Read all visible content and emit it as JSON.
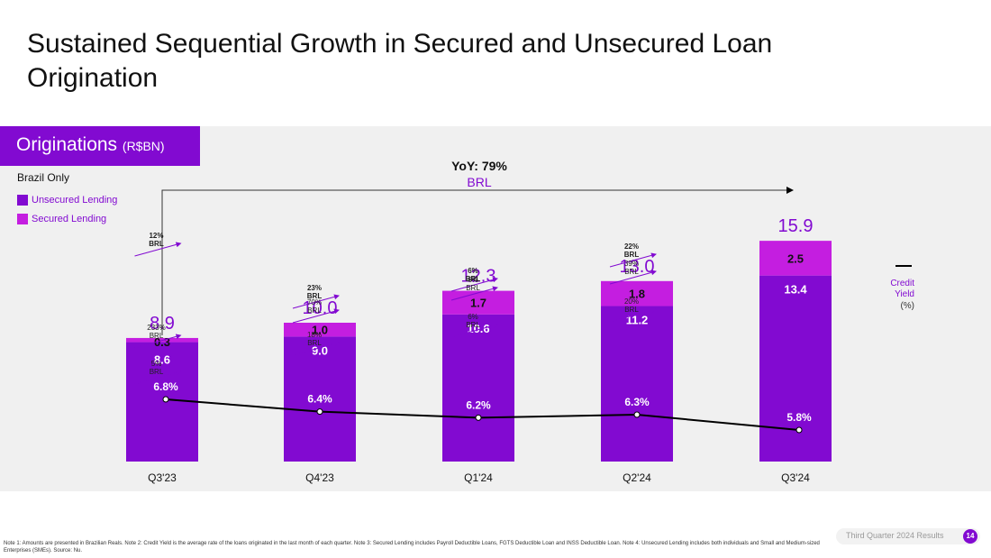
{
  "page": {
    "title": "Sustained Sequential Growth in Secured and Unsecured Loan Origination",
    "tag": {
      "label": "Originations",
      "unit": "(R$BN)"
    },
    "subtitle": "Brazil Only",
    "legend": [
      {
        "label": "Unsecured Lending",
        "color": "#820ad1"
      },
      {
        "label": "Secured Lending",
        "color": "#c41ee0"
      }
    ],
    "yoy": {
      "label": "YoY: 79%",
      "sub": "BRL"
    },
    "credit_yield_label": [
      "Credit",
      "Yield",
      "(%)"
    ],
    "footer": {
      "note": "Note 1: Amounts are presented in Brazilian Reals. Note 2: Credit Yield is the average rate of the loans originated in the last month of each quarter. Note 3: Secured Lending includes Payroll Deductible Loans, FGTS Deductible Loan and INSS Deductible Loan. Note 4: Unsecured Lending includes both individuals and Small and Medium-sized Enterprises (SMEs). Source: Nu.",
      "report": "Third Quarter 2024 Results",
      "page_number": "14"
    }
  },
  "chart_data": {
    "type": "bar",
    "title": "Originations (R$BN)",
    "categories": [
      "Q3'23",
      "Q4'23",
      "Q1'24",
      "Q2'24",
      "Q3'24"
    ],
    "series": [
      {
        "name": "Unsecured Lending",
        "values": [
          8.6,
          9.0,
          10.6,
          11.2,
          13.4
        ],
        "labels": [
          "8.6",
          "9.0",
          "10.6",
          "11.2",
          "13.4"
        ],
        "color": "#820ad1"
      },
      {
        "name": "Secured Lending",
        "values": [
          0.3,
          1.0,
          1.7,
          1.8,
          2.5
        ],
        "labels": [
          "0.3",
          "1.0",
          "1.7",
          "1.8",
          "2.5"
        ],
        "color": "#c41ee0"
      }
    ],
    "totals": [
      8.9,
      10.0,
      12.3,
      13.0,
      15.9
    ],
    "total_labels": [
      "8.9",
      "10.0",
      "12.3",
      "13.0",
      "15.9"
    ],
    "line": {
      "name": "Credit Yield (%)",
      "values": [
        6.8,
        6.4,
        6.2,
        6.3,
        5.8
      ],
      "labels": [
        "6.8%",
        "6.4%",
        "6.2%",
        "6.3%",
        "5.8%"
      ],
      "color": "#000000"
    },
    "growth": [
      {
        "total": [
          "12%",
          "BRL"
        ],
        "secured": [
          "233%",
          "BRL"
        ],
        "unsecured": [
          "5%",
          "BRL"
        ]
      },
      {
        "total": [
          "23%",
          "BRL"
        ],
        "secured": [
          "70%",
          "BRL"
        ],
        "unsecured": [
          "18%",
          "BRL"
        ]
      },
      {
        "total": [
          "6%",
          "BRL"
        ],
        "secured": [
          "6%",
          "BRL"
        ],
        "unsecured": [
          "6%",
          "BRL"
        ]
      },
      {
        "total": [
          "22%",
          "BRL"
        ],
        "secured": [
          "39%",
          "BRL"
        ],
        "unsecured": [
          "20%",
          "BRL"
        ]
      }
    ],
    "ylim": [
      0,
      18
    ]
  }
}
